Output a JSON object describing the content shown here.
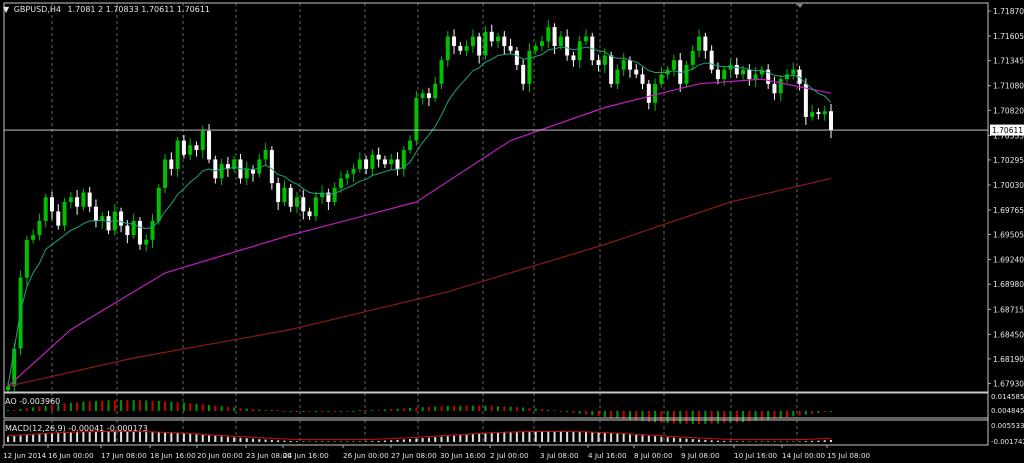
{
  "header": {
    "symbol": "GBPUSD,H4",
    "ohlc": "1.7081 2 1.70833 1.70611 1.70611"
  },
  "colors": {
    "background": "#000000",
    "frame": "#c8c8c8",
    "grid": "#c8c8c8",
    "bull_candle": "#00c000",
    "bear_candle": "#ffffff",
    "ma_fast": "#1fa37a",
    "ma_mid": "#c020c0",
    "ma_slow": "#8b1a1a",
    "ao_up": "#009900",
    "ao_down": "#cc0000",
    "macd_hist": "#e0e0e0",
    "macd_signal": "#d01010"
  },
  "chart_data": [
    {
      "type": "candlestick",
      "symbol": "GBPUSD",
      "timeframe": "H4",
      "y_ticks": [
        "1.71870",
        "1.71605",
        "1.71345",
        "1.71080",
        "1.70820",
        "1.70555",
        "1.70295",
        "1.70030",
        "1.69765",
        "1.69505",
        "1.69240",
        "1.68980",
        "1.68715",
        "1.68450",
        "1.68190",
        "1.67930"
      ],
      "ylim": [
        1.6784,
        1.71955
      ],
      "current_price": "1.70611",
      "x_labels": [
        "12 Jun 2014",
        "16 Jun 00:00",
        "17 Jun 08:00",
        "18 Jun 16:00",
        "20 Jun 00:00",
        "23 Jun 08:00",
        "24 Jun 16:00",
        "26 Jun 00:00",
        "27 Jun 08:00",
        "30 Jun 16:00",
        "2 Jul 00:00",
        "3 Jul 08:00",
        "4 Jul 16:00",
        "8 Jul 00:00",
        "9 Jul 08:00",
        "10 Jul 16:00",
        "14 Jul 00:00",
        "15 Jul 08:00"
      ],
      "close": [
        1.679,
        1.683,
        1.6905,
        1.6945,
        1.695,
        1.6965,
        1.699,
        1.6975,
        1.696,
        1.6985,
        1.699,
        1.698,
        1.6995,
        1.698,
        1.6965,
        1.697,
        1.6955,
        1.6975,
        1.696,
        1.695,
        1.6965,
        1.694,
        1.6945,
        1.6965,
        1.7,
        1.703,
        1.702,
        1.705,
        1.7035,
        1.7045,
        1.704,
        1.706,
        1.703,
        1.701,
        1.7025,
        1.702,
        1.703,
        1.701,
        1.702,
        1.7015,
        1.703,
        1.704,
        1.7005,
        1.6985,
        1.7,
        1.698,
        1.699,
        1.6975,
        1.697,
        1.699,
        1.6995,
        1.6985,
        1.7,
        1.701,
        1.7015,
        1.702,
        1.703,
        1.702,
        1.7035,
        1.703,
        1.7025,
        1.703,
        1.702,
        1.704,
        1.705,
        1.7095,
        1.71,
        1.7095,
        1.711,
        1.7135,
        1.716,
        1.715,
        1.7145,
        1.715,
        1.716,
        1.714,
        1.7165,
        1.7155,
        1.716,
        1.715,
        1.7145,
        1.713,
        1.711,
        1.7145,
        1.715,
        1.7155,
        1.717,
        1.715,
        1.716,
        1.714,
        1.7135,
        1.7155,
        1.716,
        1.7135,
        1.713,
        1.714,
        1.711,
        1.7125,
        1.7135,
        1.7125,
        1.712,
        1.711,
        1.709,
        1.711,
        1.712,
        1.7125,
        1.7135,
        1.711,
        1.713,
        1.7145,
        1.716,
        1.7145,
        1.7125,
        1.7115,
        1.7125,
        1.713,
        1.712,
        1.7125,
        1.7115,
        1.712,
        1.7125,
        1.711,
        1.71,
        1.7115,
        1.712,
        1.7125,
        1.711,
        1.7075,
        1.708,
        1.7078,
        1.7081,
        1.7061
      ],
      "ma_fast": [
        1.679,
        1.683,
        1.687,
        1.6895,
        1.691,
        1.692,
        1.6935,
        1.694,
        1.6945,
        1.695,
        1.6955,
        1.6958,
        1.6962,
        1.6965,
        1.6965,
        1.6966,
        1.6964,
        1.6965,
        1.6964,
        1.6962,
        1.6962,
        1.6958,
        1.6957,
        1.6958,
        1.6965,
        1.6975,
        1.6983,
        1.6993,
        1.6999,
        1.7006,
        1.7011,
        1.7018,
        1.702,
        1.7018,
        1.702,
        1.702,
        1.7022,
        1.702,
        1.702,
        1.7019,
        1.7021,
        1.7024,
        1.702,
        1.7014,
        1.7012,
        1.7007,
        1.7004,
        1.6999,
        1.6995,
        1.6994,
        1.6994,
        1.6993,
        1.6994,
        1.6997,
        1.7,
        1.7003,
        1.7007,
        1.7009,
        1.7013,
        1.7015,
        1.7017,
        1.7019,
        1.7019,
        1.7022,
        1.7027,
        1.7038,
        1.7048,
        1.7056,
        1.7065,
        1.7077,
        1.7091,
        1.7101,
        1.7109,
        1.7116,
        1.7124,
        1.7127,
        1.7133,
        1.7136,
        1.714,
        1.7141,
        1.7142,
        1.714,
        1.7136,
        1.7137,
        1.7139,
        1.7141,
        1.7146,
        1.7147,
        1.7149,
        1.7148,
        1.7146,
        1.7147,
        1.7149,
        1.7147,
        1.7145,
        1.7144,
        1.7139,
        1.7137,
        1.7137,
        1.7135,
        1.7133,
        1.7129,
        1.7124,
        1.7122,
        1.7122,
        1.7122,
        1.7124,
        1.7122,
        1.7123,
        1.7126,
        1.713,
        1.7132,
        1.7131,
        1.7129,
        1.7128,
        1.7128,
        1.7127,
        1.7127,
        1.7125,
        1.7124,
        1.7124,
        1.7122,
        1.7119,
        1.7118,
        1.7118,
        1.7119,
        1.7117,
        1.711,
        1.7105,
        1.71,
        1.7097,
        1.709
      ],
      "ma_mid_points": [
        [
          0,
          1.679
        ],
        [
          10,
          1.685
        ],
        [
          25,
          1.691
        ],
        [
          45,
          1.695
        ],
        [
          65,
          1.6985
        ],
        [
          80,
          1.705
        ],
        [
          95,
          1.7085
        ],
        [
          110,
          1.711
        ],
        [
          120,
          1.7115
        ],
        [
          131,
          1.71
        ]
      ],
      "ma_slow_points": [
        [
          0,
          1.679
        ],
        [
          20,
          1.682
        ],
        [
          45,
          1.685
        ],
        [
          70,
          1.689
        ],
        [
          95,
          1.694
        ],
        [
          115,
          1.6985
        ],
        [
          131,
          1.701
        ]
      ]
    },
    {
      "type": "bar",
      "name": "AO",
      "label": "AO -0.003960",
      "y_ticks": [
        "0.014585",
        "0.004845"
      ]
    },
    {
      "type": "bar",
      "name": "MACD",
      "label": "MACD(12,26,9) -0.00041 -0.000173",
      "y_ticks": [
        "0.005533",
        "-0.001742"
      ]
    }
  ]
}
